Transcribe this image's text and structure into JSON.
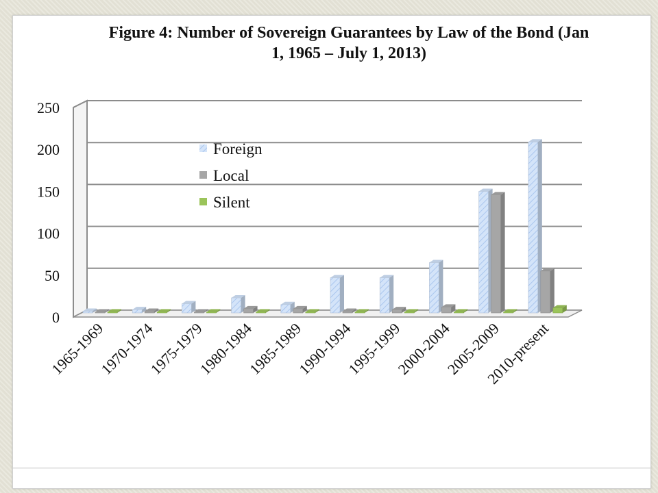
{
  "chart_data": {
    "type": "bar",
    "title": "Figure 4: Number of Sovereign Guarantees by Law of the Bond (Jan 1, 1965 – July 1, 2013)",
    "xlabel": "",
    "ylabel": "",
    "ylim": [
      0,
      250
    ],
    "yticks": [
      "0",
      "50",
      "100",
      "150",
      "200",
      "250"
    ],
    "grid": true,
    "legend_position": "upper-left inside plot",
    "categories": [
      "1965-1969",
      "1970-1974",
      "1975-1979",
      "1980-1984",
      "1985-1989",
      "1990-1994",
      "1995-1999",
      "2000-2004",
      "2005-2009",
      "2010-present"
    ],
    "series": [
      {
        "name": "Foreign",
        "color": "#cfe0f7",
        "values": [
          2,
          4,
          11,
          18,
          10,
          42,
          42,
          60,
          145,
          204
        ]
      },
      {
        "name": "Local",
        "color": "#a6a6a6",
        "values": [
          1,
          2,
          1,
          5,
          5,
          2,
          4,
          7,
          141,
          50
        ]
      },
      {
        "name": "Silent",
        "color": "#9bc45a",
        "values": [
          1,
          1,
          1,
          1,
          1,
          1,
          1,
          1,
          1,
          6
        ]
      }
    ]
  }
}
